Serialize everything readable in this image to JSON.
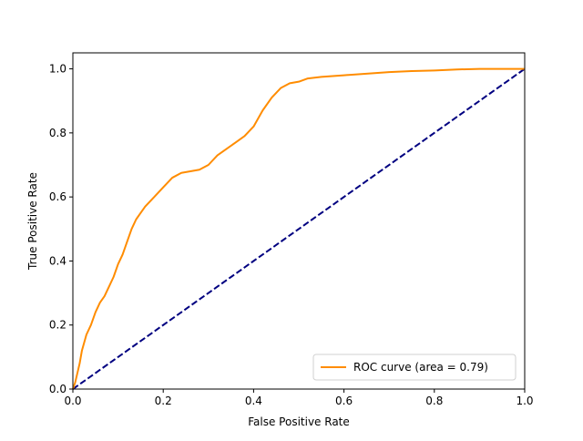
{
  "chart_data": {
    "type": "line",
    "xlabel": "False Positive Rate",
    "ylabel": "True Positive Rate",
    "xlim": [
      0.0,
      1.0
    ],
    "ylim": [
      0.0,
      1.05
    ],
    "xticks": [
      "0.0",
      "0.2",
      "0.4",
      "0.6",
      "0.8",
      "1.0"
    ],
    "yticks": [
      "0.0",
      "0.2",
      "0.4",
      "0.6",
      "0.8",
      "1.0"
    ],
    "grid": false,
    "legend_position": "lower-right",
    "series": [
      {
        "name": "ROC curve (area = 0.79)",
        "color": "#ff8c00",
        "style": "solid",
        "x": [
          0.0,
          0.005,
          0.01,
          0.015,
          0.02,
          0.03,
          0.04,
          0.05,
          0.06,
          0.07,
          0.08,
          0.09,
          0.1,
          0.11,
          0.12,
          0.13,
          0.14,
          0.15,
          0.16,
          0.18,
          0.2,
          0.22,
          0.24,
          0.26,
          0.28,
          0.3,
          0.32,
          0.34,
          0.36,
          0.38,
          0.4,
          0.42,
          0.44,
          0.46,
          0.48,
          0.5,
          0.52,
          0.55,
          0.6,
          0.65,
          0.7,
          0.75,
          0.8,
          0.85,
          0.9,
          0.95,
          1.0
        ],
        "y": [
          0.0,
          0.02,
          0.05,
          0.08,
          0.12,
          0.17,
          0.2,
          0.24,
          0.27,
          0.29,
          0.32,
          0.35,
          0.39,
          0.42,
          0.46,
          0.5,
          0.53,
          0.55,
          0.57,
          0.6,
          0.63,
          0.66,
          0.675,
          0.68,
          0.685,
          0.7,
          0.73,
          0.75,
          0.77,
          0.79,
          0.82,
          0.87,
          0.91,
          0.94,
          0.955,
          0.96,
          0.97,
          0.975,
          0.98,
          0.985,
          0.99,
          0.993,
          0.995,
          0.998,
          1.0,
          1.0,
          1.0
        ]
      },
      {
        "name": "",
        "color": "#000080",
        "style": "dashed",
        "x": [
          0.0,
          1.0
        ],
        "y": [
          0.0,
          1.0
        ]
      }
    ]
  }
}
